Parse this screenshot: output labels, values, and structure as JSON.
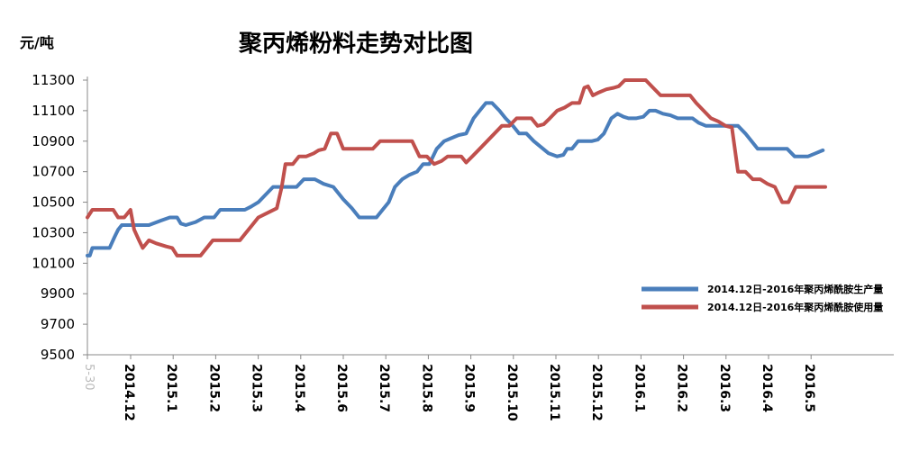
{
  "chart_data": {
    "type": "line",
    "title": "聚丙烯粉料走势对比图",
    "unit_label": "元/吨",
    "ylim": [
      9500,
      11300
    ],
    "yticks": [
      9500,
      9700,
      9900,
      10100,
      10300,
      10500,
      10700,
      10900,
      11100,
      11300
    ],
    "first_tick_label": "5-30",
    "categories": [
      "2014.12",
      "2015.1",
      "2015.2",
      "2015.3",
      "2015.4",
      "2015.6",
      "2015.7",
      "2015.8",
      "2015.9",
      "2015.10",
      "2015.11",
      "2015.12",
      "2016.1",
      "2016.2",
      "2016.3",
      "2016.4",
      "2016.5"
    ],
    "grid": false,
    "legend_position": "right",
    "series": [
      {
        "name": "2014.12日-2016年聚丙烯酰胺生产量",
        "color": "#4a7ebb",
        "values": [
          [
            0,
            10150
          ],
          [
            0.2,
            10150
          ],
          [
            0.4,
            10200
          ],
          [
            1,
            10200
          ],
          [
            1.8,
            10200
          ],
          [
            2.2,
            10270
          ],
          [
            2.5,
            10320
          ],
          [
            2.8,
            10350
          ],
          [
            3.5,
            10350
          ],
          [
            4,
            10350
          ],
          [
            5,
            10350
          ],
          [
            6,
            10380
          ],
          [
            6.7,
            10400
          ],
          [
            7.3,
            10400
          ],
          [
            7.6,
            10360
          ],
          [
            8,
            10350
          ],
          [
            8.8,
            10370
          ],
          [
            9.5,
            10400
          ],
          [
            10.3,
            10400
          ],
          [
            10.6,
            10430
          ],
          [
            10.8,
            10450
          ],
          [
            11.5,
            10450
          ],
          [
            12.2,
            10450
          ],
          [
            12.8,
            10450
          ],
          [
            13.3,
            10470
          ],
          [
            13.9,
            10500
          ],
          [
            14.5,
            10550
          ],
          [
            15.1,
            10600
          ],
          [
            16,
            10600
          ],
          [
            17,
            10600
          ],
          [
            17.6,
            10650
          ],
          [
            18.5,
            10650
          ],
          [
            19.2,
            10620
          ],
          [
            20,
            10600
          ],
          [
            20.8,
            10520
          ],
          [
            21.5,
            10460
          ],
          [
            22.1,
            10400
          ],
          [
            22.7,
            10400
          ],
          [
            23.5,
            10400
          ],
          [
            24,
            10450
          ],
          [
            24.5,
            10500
          ],
          [
            25,
            10600
          ],
          [
            25.6,
            10650
          ],
          [
            26.2,
            10680
          ],
          [
            26.8,
            10700
          ],
          [
            27.3,
            10750
          ],
          [
            27.8,
            10750
          ],
          [
            28.1,
            10800
          ],
          [
            28.4,
            10850
          ],
          [
            29,
            10900
          ],
          [
            29.6,
            10920
          ],
          [
            30.2,
            10940
          ],
          [
            30.8,
            10950
          ],
          [
            31.4,
            11050
          ],
          [
            31.9,
            11100
          ],
          [
            32.4,
            11150
          ],
          [
            32.9,
            11150
          ],
          [
            33.5,
            11100
          ],
          [
            34,
            11050
          ],
          [
            34.6,
            11000
          ],
          [
            35.1,
            10950
          ],
          [
            35.7,
            10950
          ],
          [
            36.3,
            10900
          ],
          [
            36.9,
            10860
          ],
          [
            37.5,
            10820
          ],
          [
            38.2,
            10800
          ],
          [
            38.7,
            10810
          ],
          [
            39,
            10850
          ],
          [
            39.4,
            10850
          ],
          [
            39.9,
            10900
          ],
          [
            40.4,
            10900
          ],
          [
            41,
            10900
          ],
          [
            41.5,
            10910
          ],
          [
            42,
            10950
          ],
          [
            42.6,
            11050
          ],
          [
            43.1,
            11080
          ],
          [
            43.6,
            11060
          ],
          [
            44,
            11050
          ],
          [
            44.6,
            11050
          ],
          [
            45.2,
            11060
          ],
          [
            45.7,
            11100
          ],
          [
            46.2,
            11100
          ],
          [
            46.8,
            11080
          ],
          [
            47.4,
            11070
          ],
          [
            48,
            11050
          ],
          [
            48.6,
            11050
          ],
          [
            49.2,
            11050
          ],
          [
            49.7,
            11020
          ],
          [
            50.3,
            11000
          ],
          [
            51,
            11000
          ],
          [
            51.6,
            11000
          ],
          [
            52.3,
            11000
          ],
          [
            52.9,
            11000
          ],
          [
            53.5,
            10950
          ],
          [
            54,
            10900
          ],
          [
            54.5,
            10850
          ],
          [
            55.1,
            10850
          ],
          [
            55.7,
            10850
          ],
          [
            56.3,
            10850
          ],
          [
            56.9,
            10850
          ],
          [
            57.5,
            10800
          ],
          [
            58,
            10800
          ],
          [
            58.6,
            10800
          ],
          [
            59.2,
            10820
          ],
          [
            59.8,
            10840
          ]
        ]
      },
      {
        "name": "2014.12日-2016年聚丙烯酰胺使用量",
        "color": "#c0504d",
        "values": [
          [
            0,
            10400
          ],
          [
            0.4,
            10450
          ],
          [
            1,
            10450
          ],
          [
            1.6,
            10450
          ],
          [
            2.1,
            10450
          ],
          [
            2.5,
            10400
          ],
          [
            3,
            10400
          ],
          [
            3.5,
            10450
          ],
          [
            3.8,
            10320
          ],
          [
            4.2,
            10250
          ],
          [
            4.5,
            10200
          ],
          [
            5,
            10250
          ],
          [
            5.6,
            10230
          ],
          [
            6.4,
            10210
          ],
          [
            6.9,
            10200
          ],
          [
            7.3,
            10150
          ],
          [
            7.9,
            10150
          ],
          [
            8.5,
            10150
          ],
          [
            9.2,
            10150
          ],
          [
            9.7,
            10200
          ],
          [
            10.2,
            10250
          ],
          [
            10.9,
            10250
          ],
          [
            11.6,
            10250
          ],
          [
            12.4,
            10250
          ],
          [
            12.9,
            10300
          ],
          [
            13.4,
            10350
          ],
          [
            13.9,
            10400
          ],
          [
            14.4,
            10420
          ],
          [
            14.9,
            10440
          ],
          [
            15.4,
            10460
          ],
          [
            15.8,
            10600
          ],
          [
            16.1,
            10750
          ],
          [
            16.7,
            10750
          ],
          [
            17.2,
            10800
          ],
          [
            17.8,
            10800
          ],
          [
            18.4,
            10820
          ],
          [
            18.8,
            10840
          ],
          [
            19.3,
            10850
          ],
          [
            19.8,
            10950
          ],
          [
            20.3,
            10950
          ],
          [
            20.8,
            10850
          ],
          [
            21.4,
            10850
          ],
          [
            22,
            10850
          ],
          [
            22.6,
            10850
          ],
          [
            23.2,
            10850
          ],
          [
            23.8,
            10900
          ],
          [
            24.5,
            10900
          ],
          [
            25.1,
            10900
          ],
          [
            25.7,
            10900
          ],
          [
            26.4,
            10900
          ],
          [
            27,
            10800
          ],
          [
            27.6,
            10800
          ],
          [
            28.2,
            10750
          ],
          [
            28.8,
            10770
          ],
          [
            29.3,
            10800
          ],
          [
            29.8,
            10800
          ],
          [
            30.4,
            10800
          ],
          [
            30.8,
            10760
          ],
          [
            31.3,
            10800
          ],
          [
            31.9,
            10850
          ],
          [
            32.5,
            10900
          ],
          [
            33.1,
            10950
          ],
          [
            33.7,
            11000
          ],
          [
            34.3,
            11000
          ],
          [
            34.9,
            11050
          ],
          [
            35.5,
            11050
          ],
          [
            36.1,
            11050
          ],
          [
            36.6,
            11000
          ],
          [
            37.1,
            11010
          ],
          [
            37.6,
            11050
          ],
          [
            38.2,
            11100
          ],
          [
            38.8,
            11120
          ],
          [
            39.4,
            11150
          ],
          [
            40,
            11150
          ],
          [
            40.4,
            11250
          ],
          [
            40.7,
            11260
          ],
          [
            41.1,
            11200
          ],
          [
            41.6,
            11220
          ],
          [
            42.2,
            11240
          ],
          [
            42.8,
            11250
          ],
          [
            43.2,
            11260
          ],
          [
            43.7,
            11300
          ],
          [
            44.2,
            11300
          ],
          [
            44.8,
            11300
          ],
          [
            45.4,
            11300
          ],
          [
            46,
            11250
          ],
          [
            46.6,
            11200
          ],
          [
            47.2,
            11200
          ],
          [
            47.8,
            11200
          ],
          [
            48.4,
            11200
          ],
          [
            49,
            11200
          ],
          [
            49.5,
            11150
          ],
          [
            50.1,
            11100
          ],
          [
            50.7,
            11050
          ],
          [
            51.3,
            11030
          ],
          [
            51.9,
            11000
          ],
          [
            52.4,
            10990
          ],
          [
            52.9,
            10700
          ],
          [
            53.5,
            10700
          ],
          [
            54.1,
            10650
          ],
          [
            54.7,
            10650
          ],
          [
            55.3,
            10620
          ],
          [
            55.9,
            10600
          ],
          [
            56.5,
            10500
          ],
          [
            57,
            10500
          ],
          [
            57.6,
            10600
          ],
          [
            58.2,
            10600
          ],
          [
            58.8,
            10600
          ],
          [
            59.4,
            10600
          ],
          [
            60,
            10600
          ]
        ]
      }
    ]
  }
}
